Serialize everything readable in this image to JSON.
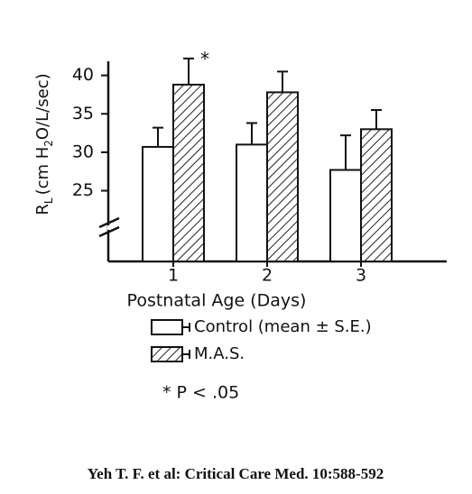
{
  "chart_data": {
    "type": "bar",
    "y_label_parts": [
      "R",
      "L",
      "(cm H",
      "2",
      "O/L/sec)"
    ],
    "x_label": "Postnatal Age (Days)",
    "categories": [
      "1",
      "2",
      "3"
    ],
    "series": [
      {
        "name": "Control (mean ± S.E.)",
        "color": "#ffffff",
        "pattern": "none",
        "values": [
          30.7,
          31.0,
          27.7
        ],
        "errors": [
          2.5,
          2.8,
          4.5
        ]
      },
      {
        "name": "M.A.S.",
        "color": "#ffffff",
        "pattern": "hatch",
        "values": [
          38.8,
          37.8,
          33.0
        ],
        "errors": [
          3.4,
          2.7,
          2.5
        ]
      }
    ],
    "ylim": [
      15.8,
      41.6
    ],
    "yticks": [
      25,
      30,
      35,
      40
    ],
    "annotation": "*",
    "note": "* P < .05",
    "caption": "Yeh T. F. et al: Critical Care Med. 10:588-592"
  }
}
